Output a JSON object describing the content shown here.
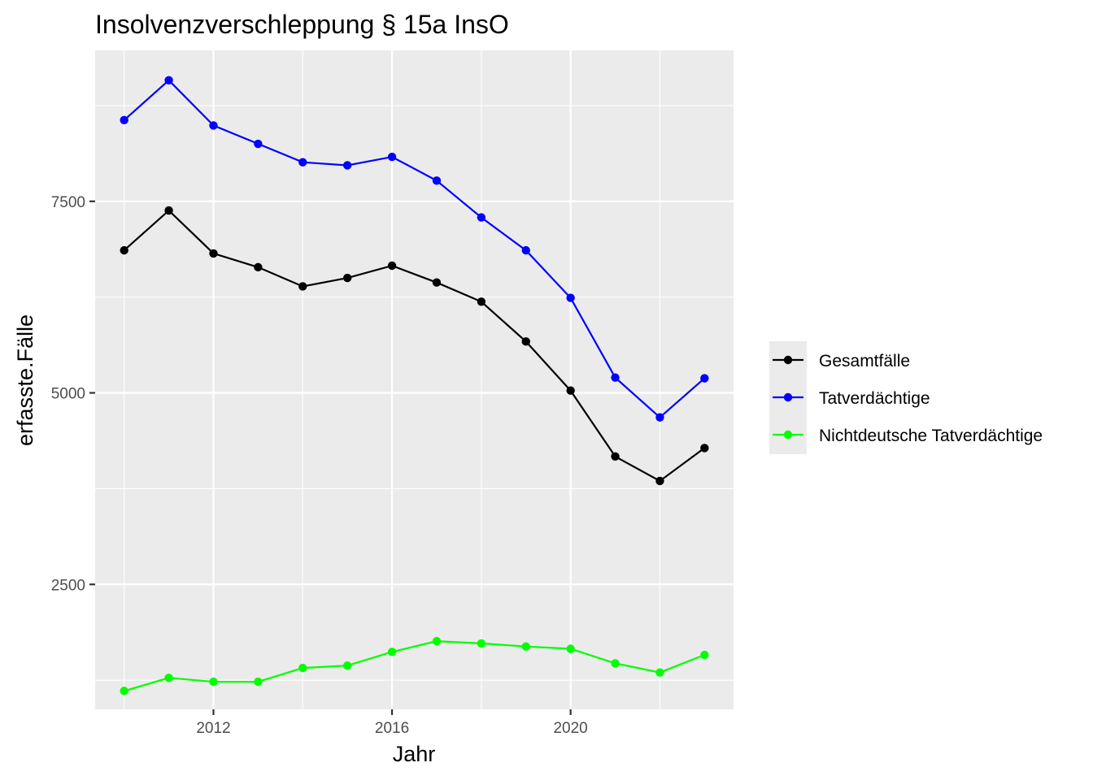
{
  "chart_data": {
    "type": "line",
    "title": "Insolvenzverschleppung § 15a InsO",
    "xlabel": "Jahr",
    "ylabel": "erfasste.Fälle",
    "x": [
      2010,
      2011,
      2012,
      2013,
      2014,
      2015,
      2016,
      2017,
      2018,
      2019,
      2020,
      2021,
      2022,
      2023
    ],
    "xticks": [
      2012,
      2016,
      2020
    ],
    "yticks": [
      2500,
      5000,
      7500
    ],
    "xlim": [
      2009.35,
      2023.65
    ],
    "ylim": [
      870,
      9470
    ],
    "grid": true,
    "legend_position": "right",
    "series": [
      {
        "name": "Gesamtfälle",
        "color": "#000000",
        "values": [
          6860,
          7380,
          6820,
          6640,
          6390,
          6500,
          6660,
          6440,
          6190,
          5670,
          5030,
          4170,
          3850,
          4280
        ]
      },
      {
        "name": "Tatverdächtige",
        "color": "#0000ff",
        "values": [
          8560,
          9080,
          8490,
          8250,
          8010,
          7970,
          8080,
          7770,
          7290,
          6860,
          6240,
          5200,
          4680,
          5190
        ]
      },
      {
        "name": "Nichtdeutsche Tatverdächtige",
        "color": "#00ff00",
        "values": [
          1110,
          1280,
          1230,
          1230,
          1410,
          1440,
          1620,
          1760,
          1730,
          1690,
          1660,
          1470,
          1350,
          1580
        ]
      }
    ]
  }
}
